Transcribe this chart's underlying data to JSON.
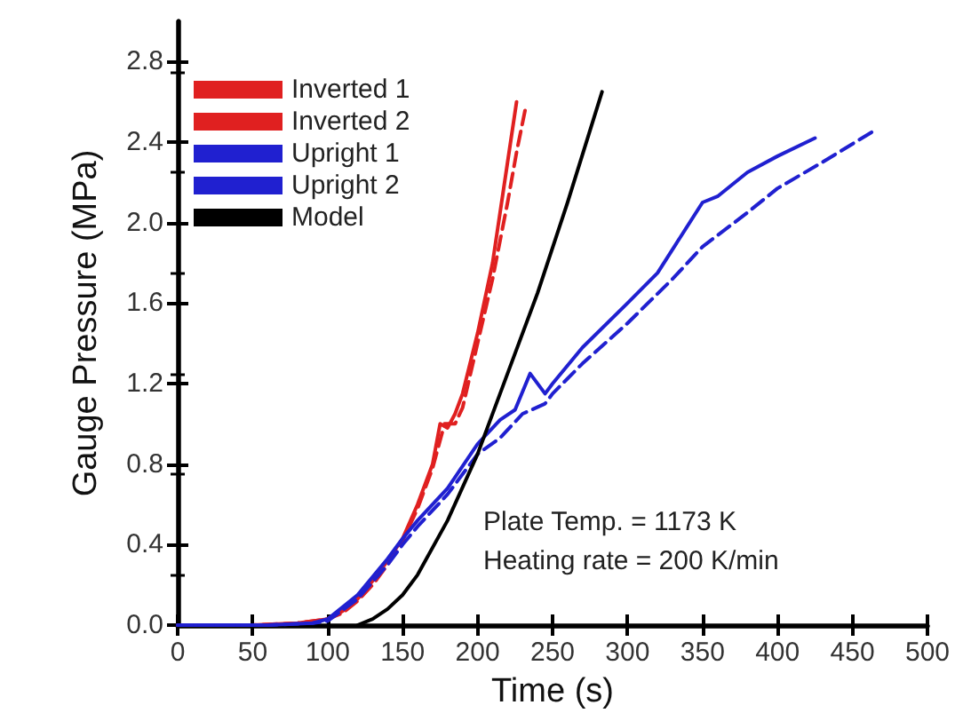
{
  "chart_data": {
    "type": "line",
    "xlabel": "Time (s)",
    "ylabel": "Gauge Pressure (MPa)",
    "xlim": [
      0,
      500
    ],
    "xticks": [
      0,
      50,
      100,
      150,
      200,
      250,
      300,
      350,
      400,
      450,
      500
    ],
    "ylim": [
      0,
      3.0
    ],
    "yticks": [
      {
        "value": 0,
        "label": "0.0"
      },
      {
        "value": 0.4,
        "label": "0.4"
      },
      {
        "value": 0.8,
        "label": "0.8"
      },
      {
        "value": 1.2,
        "label": "1.2"
      },
      {
        "value": 1.6,
        "label": "1.6"
      },
      {
        "value": 2.0,
        "label": "2.0"
      },
      {
        "value": 2.4,
        "label": "2.4"
      },
      {
        "value": 2.8,
        "label": "2.8"
      }
    ],
    "grid": false,
    "legend": "top left",
    "marker": "none",
    "annotations": [
      "Plate Temp. = 1173 K",
      "Heating rate = 200 K/min"
    ],
    "series": [
      {
        "name": "Inverted 1",
        "color": "#e02020",
        "line_style": "solid",
        "x": [
          0,
          50,
          80,
          100,
          110,
          120,
          130,
          140,
          150,
          160,
          170,
          175,
          180,
          185,
          190,
          200,
          210,
          215,
          220,
          226
        ],
        "values": [
          0,
          0,
          0.01,
          0.03,
          0.07,
          0.13,
          0.22,
          0.32,
          0.43,
          0.6,
          0.8,
          1.0,
          0.98,
          1.05,
          1.15,
          1.45,
          1.8,
          2.05,
          2.3,
          2.6
        ]
      },
      {
        "name": "Inverted 2",
        "color": "#e02020",
        "line_style": "dashed",
        "x": [
          0,
          50,
          80,
          100,
          110,
          120,
          130,
          140,
          150,
          160,
          170,
          178,
          185,
          190,
          200,
          210,
          220,
          226,
          232
        ],
        "values": [
          0,
          0,
          0.01,
          0.03,
          0.06,
          0.12,
          0.2,
          0.3,
          0.42,
          0.58,
          0.78,
          1.0,
          1.0,
          1.08,
          1.4,
          1.72,
          2.1,
          2.35,
          2.57
        ]
      },
      {
        "name": "Upright 1",
        "color": "#2020d0",
        "line_style": "solid",
        "x": [
          0,
          60,
          90,
          100,
          120,
          140,
          150,
          160,
          180,
          200,
          215,
          225,
          235,
          245,
          250,
          270,
          300,
          320,
          350,
          360,
          380,
          400,
          425
        ],
        "values": [
          0,
          0,
          0.01,
          0.03,
          0.15,
          0.33,
          0.43,
          0.52,
          0.68,
          0.9,
          1.02,
          1.07,
          1.25,
          1.15,
          1.2,
          1.38,
          1.6,
          1.75,
          2.1,
          2.13,
          2.25,
          2.33,
          2.42
        ]
      },
      {
        "name": "Upright 2",
        "color": "#2020d0",
        "line_style": "dashed",
        "x": [
          0,
          60,
          90,
          100,
          120,
          140,
          150,
          160,
          180,
          200,
          215,
          230,
          245,
          250,
          270,
          300,
          330,
          350,
          380,
          400,
          430,
          463
        ],
        "values": [
          0,
          0,
          0.01,
          0.02,
          0.13,
          0.3,
          0.4,
          0.49,
          0.65,
          0.85,
          0.93,
          1.05,
          1.1,
          1.15,
          1.3,
          1.5,
          1.72,
          1.88,
          2.05,
          2.17,
          2.3,
          2.45
        ]
      },
      {
        "name": "Model",
        "color": "#000000",
        "line_style": "solid",
        "x": [
          120,
          130,
          140,
          150,
          160,
          180,
          200,
          220,
          240,
          260,
          283
        ],
        "values": [
          0,
          0.03,
          0.08,
          0.15,
          0.25,
          0.52,
          0.85,
          1.25,
          1.65,
          2.1,
          2.65
        ]
      }
    ]
  }
}
